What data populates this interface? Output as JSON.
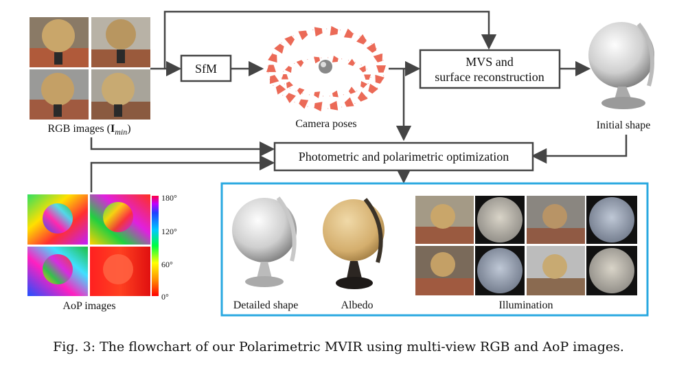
{
  "nodes": {
    "rgb_label": "RGB images (",
    "rgb_label_math": "I",
    "rgb_label_sub": "min",
    "rgb_label_close": ")",
    "sfm": "SfM",
    "camera_poses": "Camera poses",
    "mvs_line1": "MVS and",
    "mvs_line2": "surface reconstruction",
    "initial_shape": "Initial shape",
    "optimization": "Photometric and polarimetric optimization",
    "aop_images": "AoP images",
    "detailed_shape": "Detailed shape",
    "albedo": "Albedo",
    "illumination": "Illumination"
  },
  "colorbar": {
    "ticks": [
      "180°",
      "120°",
      "60°",
      "0°"
    ]
  },
  "caption": "Fig. 3: The flowchart of our Polarimetric MVIR using multi-view RGB and AoP images.",
  "colors": {
    "arrow": "#444444",
    "output_border": "#29a8e0",
    "camera": "#e8503a"
  }
}
